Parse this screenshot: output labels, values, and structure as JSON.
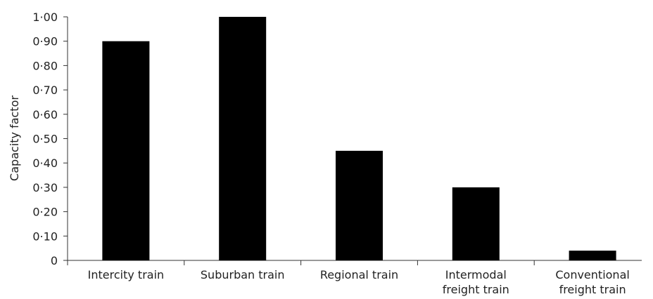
{
  "chart_data": {
    "type": "bar",
    "title": "",
    "xlabel": "",
    "ylabel": "Capacity factor",
    "ylim": [
      0,
      1.0
    ],
    "yticks": [
      {
        "value": 0,
        "label": "0"
      },
      {
        "value": 0.1,
        "label": "0·10"
      },
      {
        "value": 0.2,
        "label": "0·20"
      },
      {
        "value": 0.3,
        "label": "0·30"
      },
      {
        "value": 0.4,
        "label": "0·40"
      },
      {
        "value": 0.5,
        "label": "0·50"
      },
      {
        "value": 0.6,
        "label": "0·60"
      },
      {
        "value": 0.7,
        "label": "0·70"
      },
      {
        "value": 0.8,
        "label": "0·80"
      },
      {
        "value": 0.9,
        "label": "0·90"
      },
      {
        "value": 1.0,
        "label": "1·00"
      }
    ],
    "categories": [
      [
        "Intercity train"
      ],
      [
        "Suburban train"
      ],
      [
        "Regional train"
      ],
      [
        "Intermodal",
        "freight train"
      ],
      [
        "Conventional",
        "freight train"
      ]
    ],
    "values": [
      0.9,
      1.0,
      0.45,
      0.3,
      0.04
    ],
    "bar_color": "#000000",
    "grid": false,
    "legend": "none"
  }
}
